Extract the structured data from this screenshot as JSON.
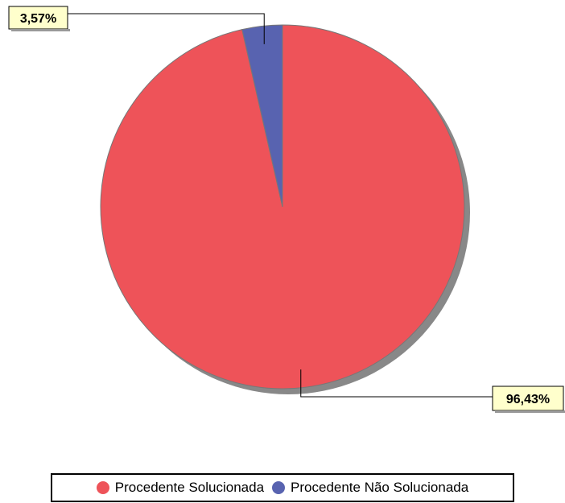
{
  "chart_data": {
    "type": "pie",
    "title": "",
    "categories": [
      "Procedente Solucionada",
      "Procedente Não Solucionada"
    ],
    "values": [
      96.43,
      3.57
    ],
    "data_labels": [
      "96,43%",
      "3,57%"
    ],
    "colors": [
      "#ee5359",
      "#5863b0"
    ],
    "legend_position": "bottom",
    "shadow_color": "#888888"
  }
}
